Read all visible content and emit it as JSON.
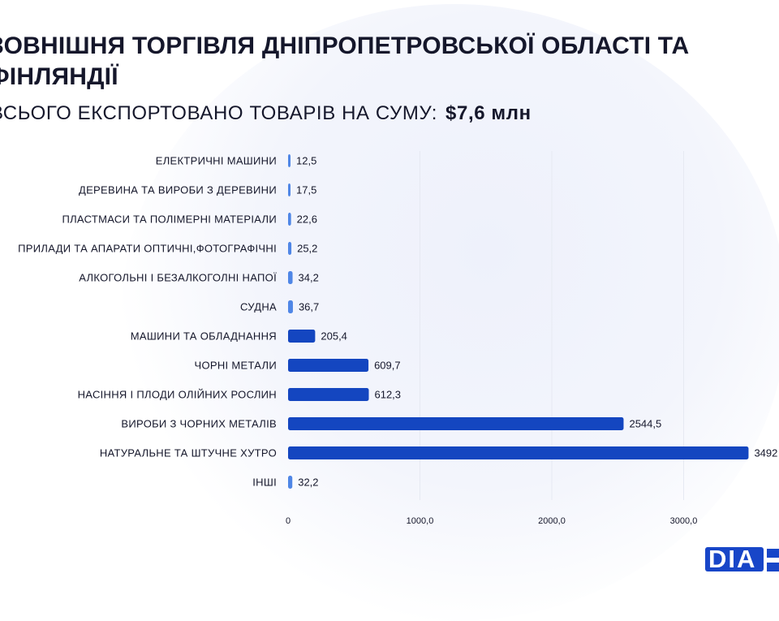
{
  "header": {
    "title": "ЗОВНІШНЯ ТОРГІВЛЯ ДНІПРОПЕТРОВСЬКОЇ ОБЛАСТІ ТА ФІНЛЯНДІЇ",
    "subtitle_prefix": "ВСЬОГО ЕКСПОРТОВАНО ТОВАРІВ НА СУМУ:",
    "subtitle_amount": "$7,6 млн"
  },
  "logo": {
    "text": "DIA"
  },
  "colors": {
    "bar_light": "#4f86e6",
    "bar_dark": "#1446c0",
    "grid": "#e6e9f2"
  },
  "chart_data": {
    "type": "bar",
    "orientation": "horizontal",
    "categories": [
      "ЕЛЕКТРИЧНІ МАШИНИ",
      "ДЕРЕВИНА ТА ВИРОБИ З ДЕРЕВИНИ",
      "ПЛАСТМАСИ ТА ПОЛІМЕРНІ МАТЕРІАЛИ",
      "ПРИЛАДИ ТА АПАРАТИ ОПТИЧНІ,ФОТОГРАФІЧНІ",
      "АЛКОГОЛЬНІ І БЕЗАЛКОГОЛНІ НАПОЇ",
      "СУДНА",
      "МАШИНИ ТА ОБЛАДНАННЯ",
      "ЧОРНІ МЕТАЛИ",
      "НАСІННЯ І ПЛОДИ ОЛІЙНИХ РОСЛИН",
      "ВИРОБИ З ЧОРНИХ МЕТАЛІВ",
      "НАТУРАЛЬНЕ ТА ШТУЧНЕ ХУТРО",
      "ІНШІ"
    ],
    "values": [
      12.5,
      17.5,
      22.6,
      25.2,
      34.2,
      36.7,
      205.4,
      609.7,
      612.3,
      2544.5,
      3492,
      32.2
    ],
    "value_labels": [
      "12,5",
      "17,5",
      "22,6",
      "25,2",
      "34,2",
      "36,7",
      "205,4",
      "609,7",
      "612,3",
      "2544,5",
      "3492",
      "32,2"
    ],
    "x_ticks": [
      0,
      1000,
      2000,
      3000
    ],
    "x_tick_labels": [
      "0",
      "1000,0",
      "2000,0",
      "3000,0"
    ],
    "xlim": [
      0,
      3500
    ],
    "grid": true,
    "legend": "none"
  }
}
